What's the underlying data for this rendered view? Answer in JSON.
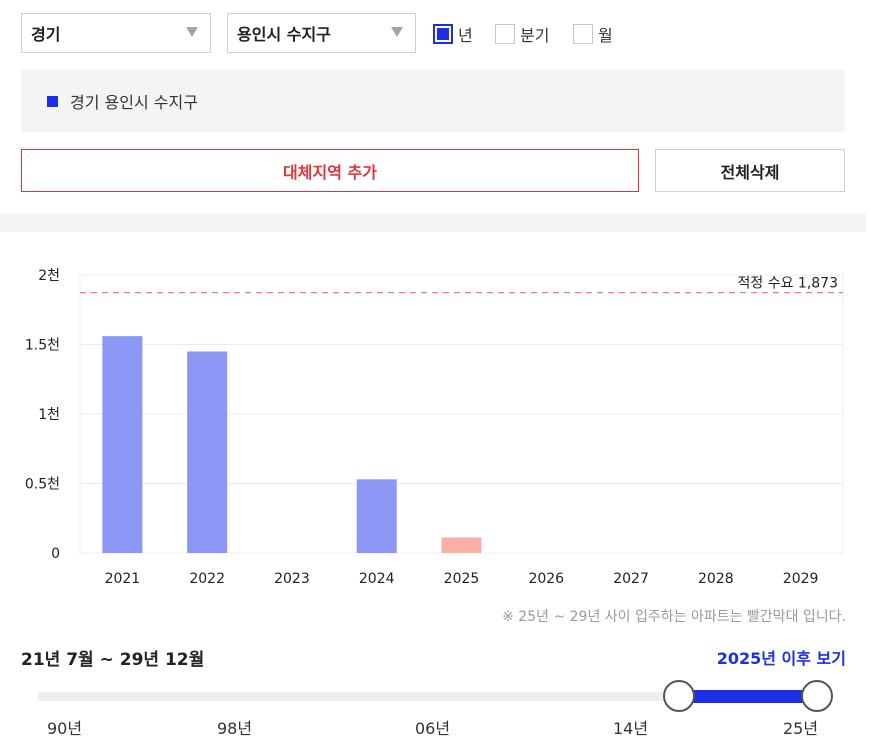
{
  "filters": {
    "region": "경기",
    "city": "용인시 수지구",
    "period_options": [
      {
        "label": "년",
        "checked": true
      },
      {
        "label": "분기",
        "checked": false
      },
      {
        "label": "월",
        "checked": false
      }
    ]
  },
  "selected_region_label": "경기 용인시 수지구",
  "buttons": {
    "add_alt_region": "대체지역 추가",
    "delete_all": "전체삭제"
  },
  "colors": {
    "accent": "#1c2fe8",
    "bar_past": "#8c96f5",
    "bar_future": "#f9b0a6",
    "ref_line": "#f07a7a",
    "danger": "#e0353b"
  },
  "chart_data": {
    "type": "bar",
    "categories": [
      "2021",
      "2022",
      "2023",
      "2024",
      "2025",
      "2026",
      "2027",
      "2028",
      "2029"
    ],
    "values": [
      1560,
      1450,
      0,
      530,
      112,
      0,
      0,
      0,
      0
    ],
    "y_tick_values": [
      0,
      500,
      1000,
      1500,
      2000
    ],
    "y_tick_labels": [
      "0",
      "0.5천",
      "1천",
      "1.5천",
      "2천"
    ],
    "ylim": [
      0,
      2000
    ],
    "reference_line": {
      "label": "적정 수요 1,873",
      "value": 1873
    },
    "grid": true
  },
  "note": "※ 25년 ~ 29년 사이 입주하는 아파트는 빨간막대 입니다.",
  "range_label": "21년 7월 ~ 29년 12월",
  "after_link": "2025년 이후 보기",
  "slider_scale": [
    "90년",
    "98년",
    "06년",
    "14년",
    "25년"
  ]
}
